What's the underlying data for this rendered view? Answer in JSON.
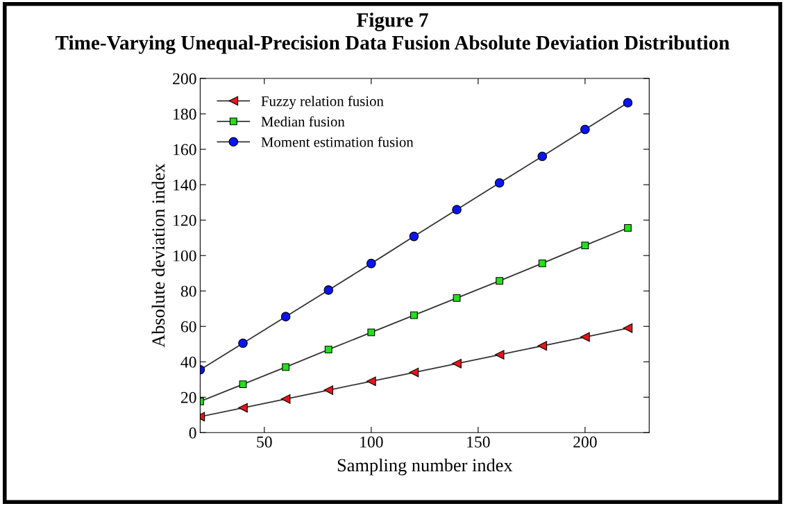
{
  "chart_data": {
    "type": "line",
    "title": "Figure 7\nTime-Varying Unequal-Precision Data Fusion Absolute Deviation Distribution",
    "xlabel": "Sampling number index",
    "ylabel": "Absolute deviation index",
    "x": [
      20,
      40,
      60,
      80,
      100,
      120,
      140,
      160,
      180,
      200,
      220
    ],
    "series": [
      {
        "name": "Fuzzy relation fusion",
        "color": "#e8141a",
        "marker": "triangle",
        "values": [
          9,
          14,
          19,
          24,
          29,
          34,
          39,
          44,
          49,
          54,
          59
        ]
      },
      {
        "name": "Median fusion",
        "color": "#22e01a",
        "marker": "square",
        "values": [
          17.6,
          27.3,
          37,
          46.9,
          56.6,
          66.3,
          76,
          85.7,
          95.6,
          105.7,
          115.6
        ]
      },
      {
        "name": "Moment estimation fusion",
        "color": "#0a14f0",
        "marker": "circle",
        "values": [
          35.5,
          50.5,
          65.5,
          80.5,
          95.5,
          110.8,
          125.9,
          141,
          156,
          171.2,
          186.3
        ]
      }
    ],
    "xlim": [
      20,
      230
    ],
    "xticks": [
      50,
      100,
      150,
      200
    ],
    "ylim": [
      0,
      200
    ],
    "yticks": [
      0,
      20,
      40,
      60,
      80,
      100,
      120,
      140,
      160,
      180,
      200
    ],
    "grid": false,
    "legend": "top left",
    "line_style": "solid"
  }
}
